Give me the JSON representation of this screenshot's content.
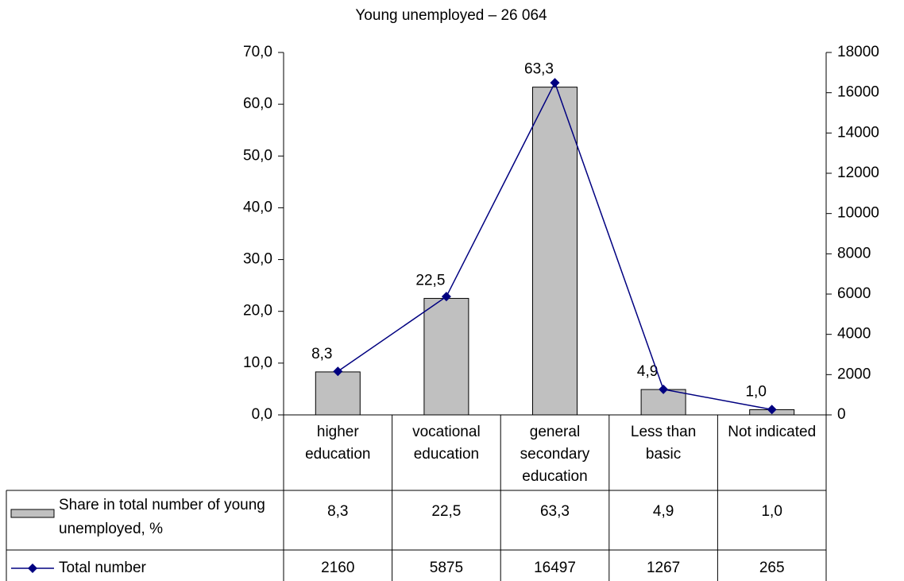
{
  "chart_data": {
    "type": "bar",
    "title": "Young unemployed – 26 064",
    "categories": [
      "higher education",
      "vocational education",
      "general secondary education",
      "Less than basic",
      "Not indicated"
    ],
    "series": [
      {
        "name": "Share in total number of young unemployed, %",
        "type": "bar",
        "color": "#c0c0c0",
        "values": [
          8.3,
          22.5,
          63.3,
          4.9,
          1.0
        ],
        "value_labels": [
          "8,3",
          "22,5",
          "63,3",
          "4,9",
          "1,0"
        ]
      },
      {
        "name": "Total number",
        "type": "line",
        "axis": "y2",
        "color": "#000080",
        "values": [
          2160,
          5875,
          16497,
          1267,
          265
        ]
      }
    ],
    "ylim": [
      0,
      70
    ],
    "yticks": [
      {
        "value": 0,
        "label": "0,0"
      },
      {
        "value": 10,
        "label": "10,0"
      },
      {
        "value": 20,
        "label": "20,0"
      },
      {
        "value": 30,
        "label": "30,0"
      },
      {
        "value": 40,
        "label": "40,0"
      },
      {
        "value": 50,
        "label": "50,0"
      },
      {
        "value": 60,
        "label": "60,0"
      },
      {
        "value": 70,
        "label": "70,0"
      }
    ],
    "y2lim": [
      0,
      18000
    ],
    "y2ticks": [
      0,
      2000,
      4000,
      6000,
      8000,
      10000,
      12000,
      14000,
      16000,
      18000
    ]
  }
}
